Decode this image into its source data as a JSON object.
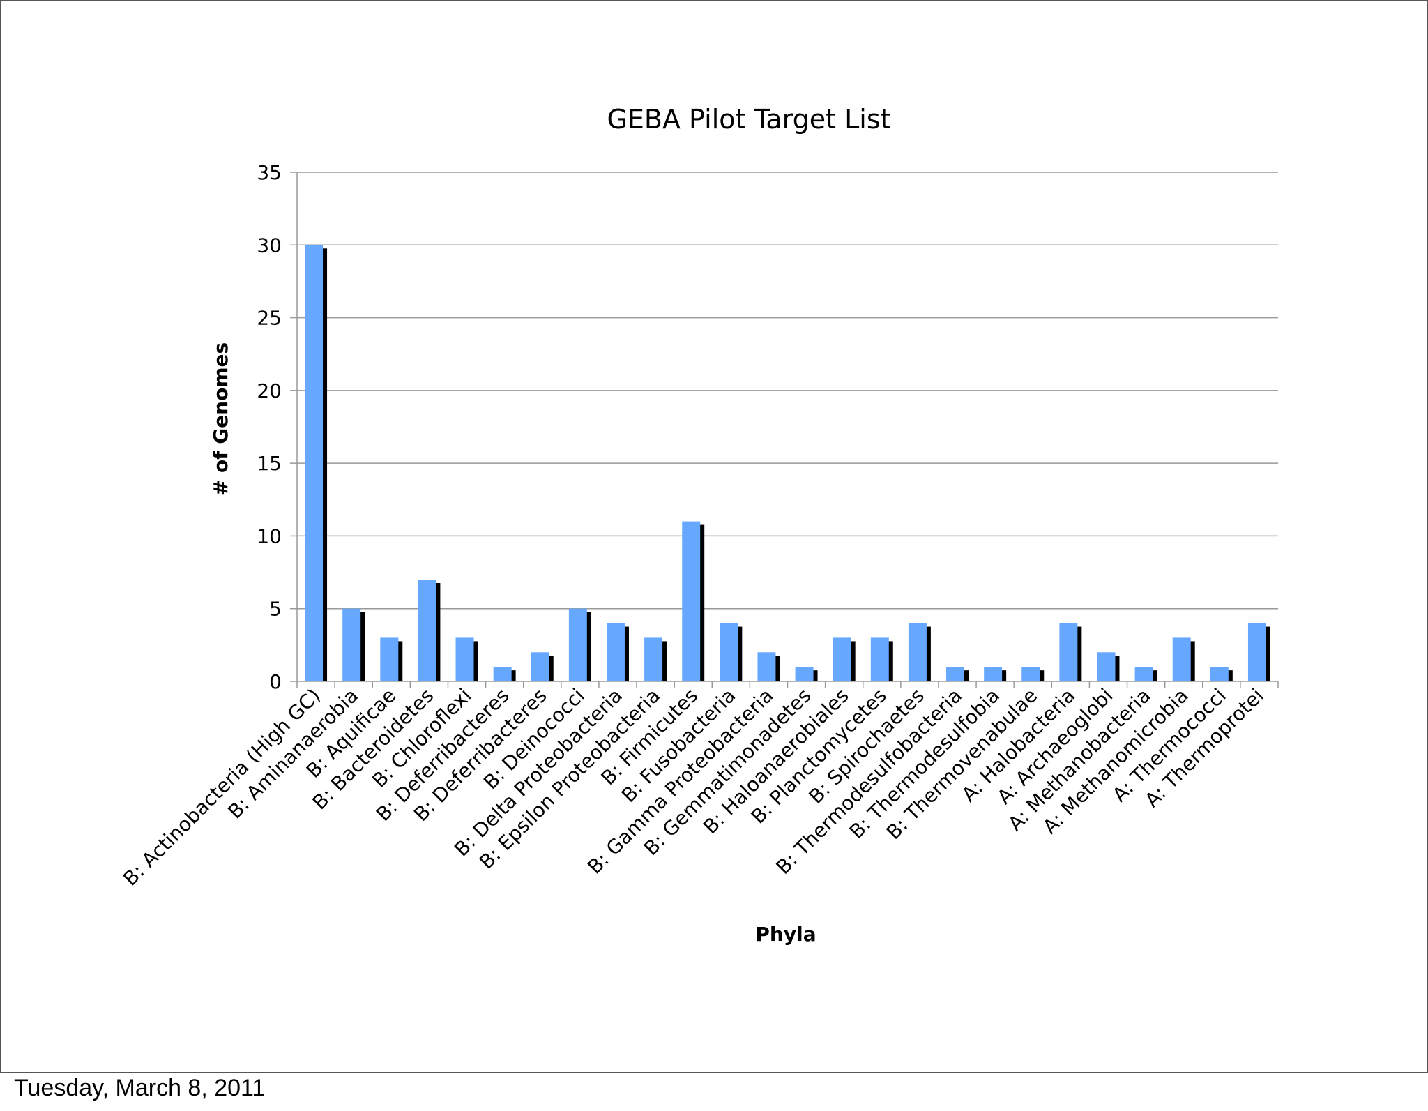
{
  "footer": {
    "date": "Tuesday, March 8, 2011"
  },
  "colors": {
    "bar": "#66a8ff",
    "shadow": "#000000",
    "grid": "#9a9a9a",
    "axis": "#9a9a9a",
    "text": "#000000"
  },
  "chart_data": {
    "type": "bar",
    "title": "GEBA Pilot Target List",
    "xlabel": "Phyla",
    "ylabel": "# of Genomes",
    "ylim": [
      0,
      35
    ],
    "yticks": [
      0,
      5,
      10,
      15,
      20,
      25,
      30,
      35
    ],
    "grid": true,
    "legend": "none",
    "categories": [
      "B: Actinobacteria (High GC)",
      "B: Aminanaerobia",
      "B: Aquificae",
      "B: Bacteroidetes",
      "B: Chloroflexi",
      "B: Deferribacteres",
      "B: Deferribacteres",
      "B: Deinococci",
      "B: Delta Proteobacteria",
      "B: Epsilon Proteobacteria",
      "B: Firmicutes",
      "B: Fusobacteria",
      "B: Gamma Proteobacteria",
      "B: Gemmatimonadetes",
      "B: Haloanaerobiales",
      "B: Planctomycetes",
      "B: Spirochaetes",
      "B: Thermodesulfobacteria",
      "B: Thermodesulfobia",
      "B: Thermovenabulae",
      "A: Halobacteria",
      "A: Archaeoglobi",
      "A: Methanobacteria",
      "A: Methanomicrobia",
      "A: Thermococci",
      "A: Thermoprotei"
    ],
    "values": [
      30,
      5,
      3,
      7,
      3,
      1,
      2,
      5,
      4,
      3,
      11,
      4,
      2,
      1,
      3,
      3,
      4,
      1,
      1,
      1,
      4,
      2,
      1,
      3,
      1,
      4
    ]
  }
}
